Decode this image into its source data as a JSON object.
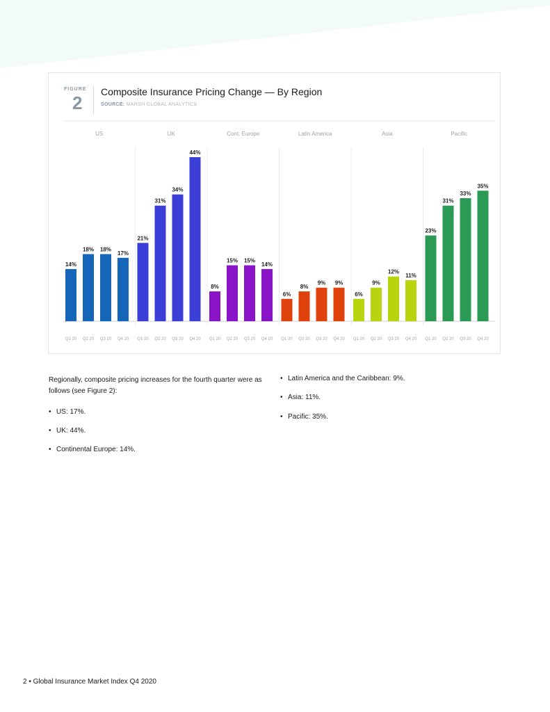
{
  "figure": {
    "label": "FIGURE",
    "number": "2",
    "title": "Composite Insurance Pricing Change — By Region",
    "source_prefix": "SOURCE:",
    "source": "MARSH GLOBAL ANALYTICS"
  },
  "chart_data": {
    "type": "bar",
    "title": "Composite Insurance Pricing Change — By Region",
    "xlabel": "",
    "ylabel": "",
    "ylim": [
      0,
      44
    ],
    "grid": false,
    "legend": "none",
    "categories": [
      "Q1 20",
      "Q2 20",
      "Q3 20",
      "Q4 20"
    ],
    "series": [
      {
        "name": "US",
        "values": [
          14,
          18,
          18,
          17
        ],
        "labels": [
          "14%",
          "18%",
          "18%",
          "17%"
        ],
        "color": "#1565b8"
      },
      {
        "name": "UK",
        "values": [
          21,
          31,
          34,
          44
        ],
        "labels": [
          "21%",
          "31%",
          "34%",
          "44%"
        ],
        "color": "#3b3fd8"
      },
      {
        "name": "Cont. Europe",
        "values": [
          8,
          15,
          15,
          14
        ],
        "labels": [
          "8%",
          "15%",
          "15%",
          "14%"
        ],
        "color": "#8a15c8"
      },
      {
        "name": "Latin America",
        "values": [
          6,
          8,
          9,
          9
        ],
        "labels": [
          "6%",
          "8%",
          "9%",
          "9%"
        ],
        "color": "#e0420c"
      },
      {
        "name": "Asia",
        "values": [
          6,
          9,
          12,
          11
        ],
        "labels": [
          "6%",
          "9%",
          "12%",
          "11%"
        ],
        "color": "#b8d40e"
      },
      {
        "name": "Pacific",
        "values": [
          23,
          31,
          33,
          35
        ],
        "labels": [
          "23%",
          "31%",
          "33%",
          "35%"
        ],
        "color": "#2a9a55"
      }
    ]
  },
  "text": {
    "intro": "Regionally, composite pricing increases for the fourth quarter were as follows (see Figure 2):",
    "bullets_left": [
      "US: 17%.",
      "UK: 44%.",
      "Continental Europe: 14%."
    ],
    "bullets_right": [
      "Latin America and the Caribbean: 9%.",
      "Asia: 11%.",
      "Pacific: 35%."
    ]
  },
  "footer": "2 • Global Insurance Market Index Q4 2020",
  "colors": {
    "wedge": "#f2fbf7",
    "axis": "#cfcfcf",
    "region_label": "#9aa4ad",
    "tick_label": "#9aa4ad"
  }
}
